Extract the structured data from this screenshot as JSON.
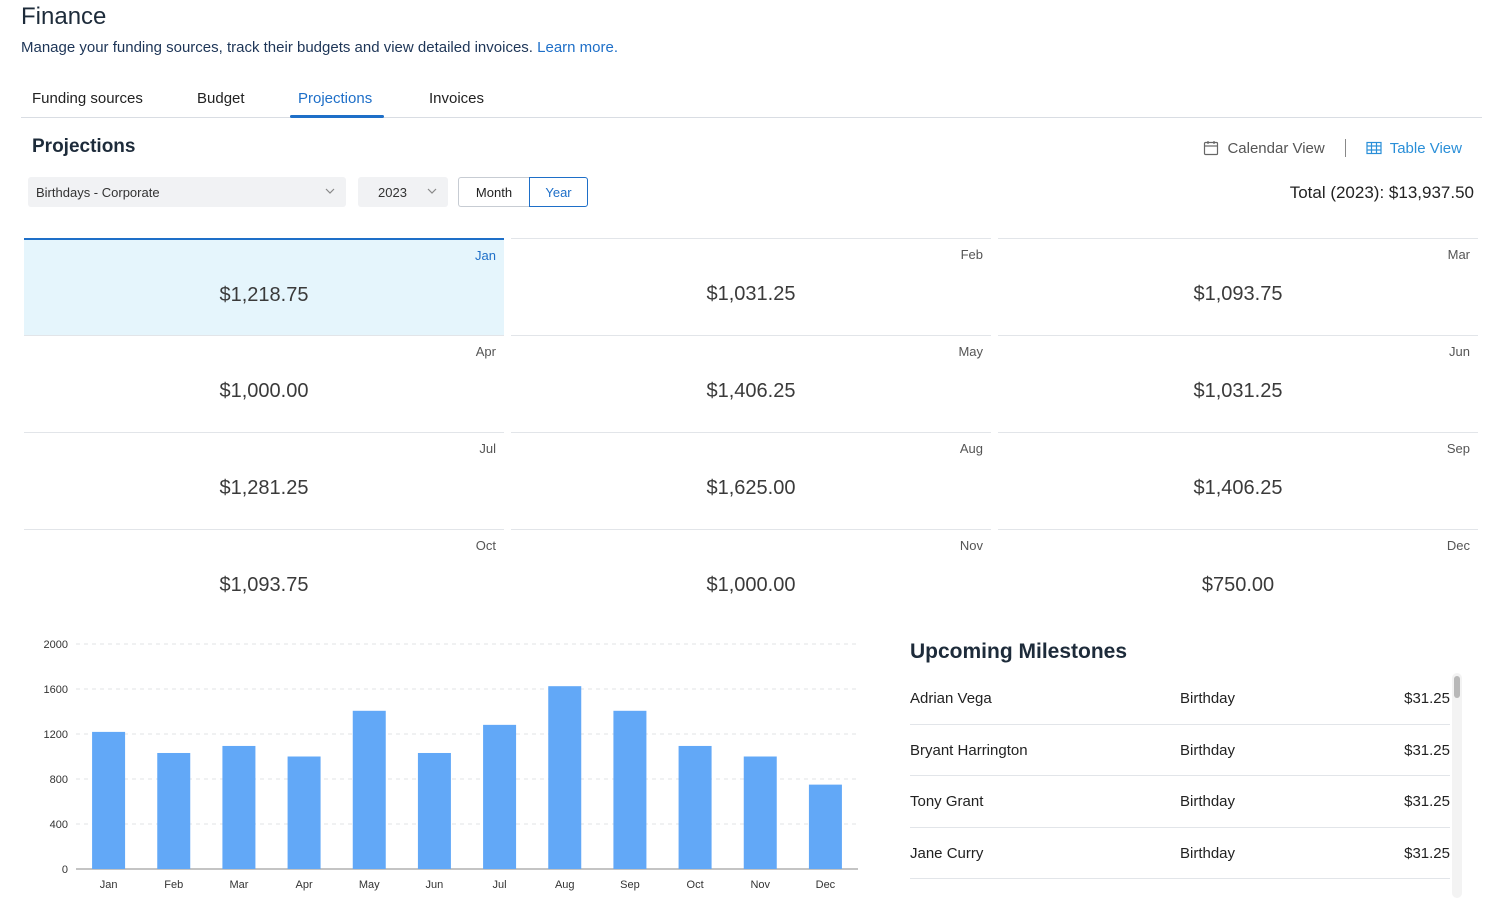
{
  "header": {
    "title": "Finance",
    "subtitle": "Manage your funding sources, track their budgets and view detailed invoices.",
    "learn_more": "Learn more."
  },
  "tabs": [
    {
      "label": "Funding sources"
    },
    {
      "label": "Budget"
    },
    {
      "label": "Projections",
      "active": true
    },
    {
      "label": "Invoices"
    }
  ],
  "projections": {
    "title": "Projections",
    "calendar_view": "Calendar View",
    "table_view": "Table View",
    "group_select": "Birthdays - Corporate",
    "year_select": "2023",
    "toggle_month": "Month",
    "toggle_year": "Year",
    "total": "Total (2023): $13,937.50"
  },
  "months": [
    {
      "month": "Jan",
      "value": "$1,218.75"
    },
    {
      "month": "Feb",
      "value": "$1,031.25"
    },
    {
      "month": "Mar",
      "value": "$1,093.75"
    },
    {
      "month": "Apr",
      "value": "$1,000.00"
    },
    {
      "month": "May",
      "value": "$1,406.25"
    },
    {
      "month": "Jun",
      "value": "$1,031.25"
    },
    {
      "month": "Jul",
      "value": "$1,281.25"
    },
    {
      "month": "Aug",
      "value": "$1,625.00"
    },
    {
      "month": "Sep",
      "value": "$1,406.25"
    },
    {
      "month": "Oct",
      "value": "$1,093.75"
    },
    {
      "month": "Nov",
      "value": "$1,000.00"
    },
    {
      "month": "Dec",
      "value": "$750.00"
    }
  ],
  "chart_data": {
    "type": "bar",
    "categories": [
      "Jan",
      "Feb",
      "Mar",
      "Apr",
      "May",
      "Jun",
      "Jul",
      "Aug",
      "Sep",
      "Oct",
      "Nov",
      "Dec"
    ],
    "values": [
      1218.75,
      1031.25,
      1093.75,
      1000,
      1406.25,
      1031.25,
      1281.25,
      1625,
      1406.25,
      1093.75,
      1000,
      750
    ],
    "yticks": [
      0,
      400,
      800,
      1200,
      1600,
      2000
    ],
    "ylim": [
      0,
      2000
    ],
    "grid": true,
    "bar_color": "#62a8f7"
  },
  "milestones": {
    "title": "Upcoming Milestones",
    "items": [
      {
        "name": "Adrian Vega",
        "type": "Birthday",
        "amount": "$31.25"
      },
      {
        "name": "Bryant Harrington",
        "type": "Birthday",
        "amount": "$31.25"
      },
      {
        "name": "Tony Grant",
        "type": "Birthday",
        "amount": "$31.25"
      },
      {
        "name": "Jane Curry",
        "type": "Birthday",
        "amount": "$31.25"
      }
    ]
  }
}
